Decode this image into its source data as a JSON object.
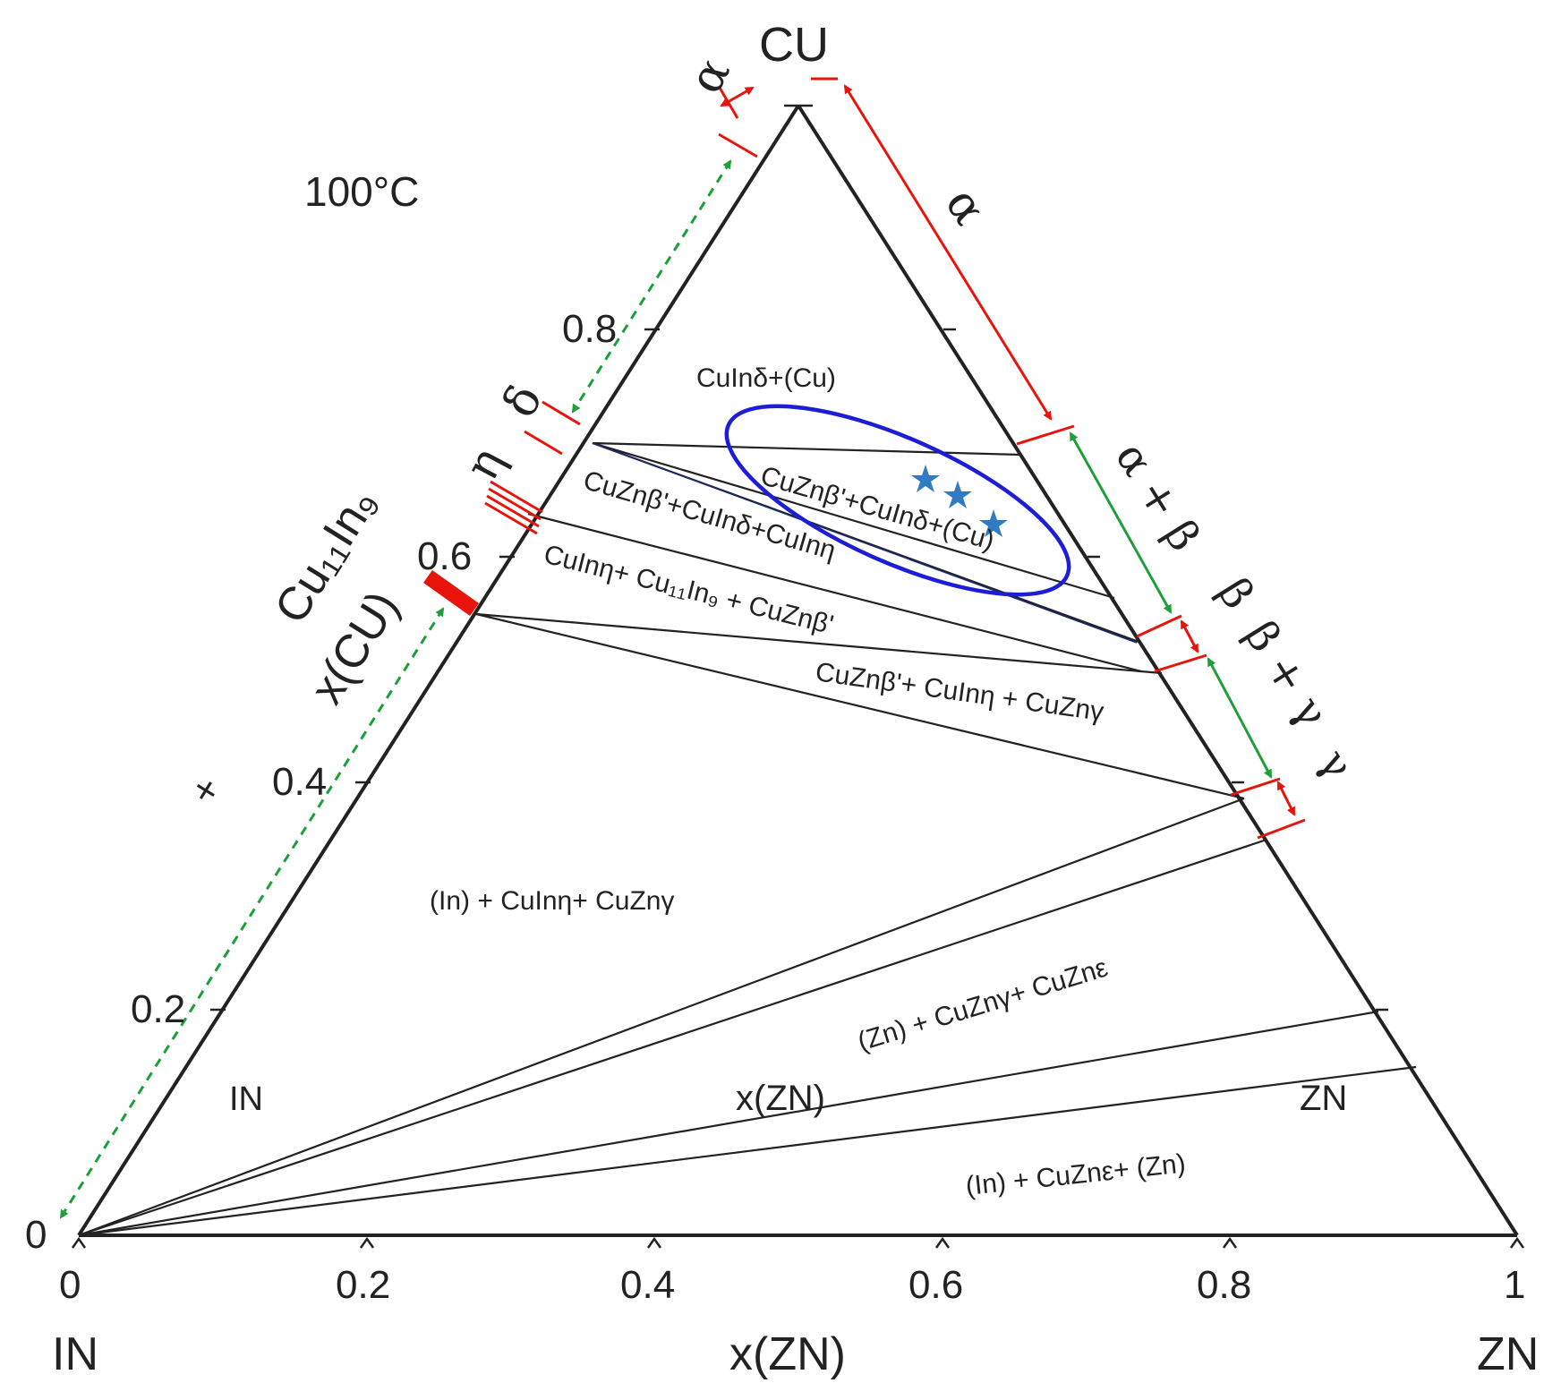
{
  "title": {
    "temperature": "100°C",
    "vertex_top": "CU",
    "vertex_left": "IN",
    "vertex_right": "ZN",
    "bottom_axis_title": "x(ZN)",
    "left_axis_title": "x(CU)",
    "left_compound": "Cu₁₁In₉",
    "plus_sign": "+"
  },
  "axes": {
    "bottom_ticks": [
      "0",
      "0.2",
      "0.4",
      "0.6",
      "0.8",
      "1"
    ],
    "left_ticks": [
      "0",
      "0.2",
      "0.4",
      "0.6",
      "0.8"
    ],
    "interior_labels": {
      "in": "IN",
      "xzn": "x(ZN)",
      "zn": "ZN"
    }
  },
  "phase_regions": [
    "CuInδ+(Cu)",
    "CuZnβ'+CuInδ+(Cu)",
    "CuZnβ'+CuInδ+CuInη",
    "CuInη+ Cu₁₁In₉ + CuZnβ'",
    "CuZnβ'+ CuInη + CuZnγ",
    "(In) + CuInη+ CuZnγ",
    "(Zn) + CuZnγ+ CuZnε",
    "(In) + CuZnε+ (Zn)"
  ],
  "solubility_labels": {
    "left": [
      "α",
      "δ",
      "η"
    ],
    "right": [
      "α",
      "α + β",
      "β",
      "β + γ",
      "γ"
    ]
  },
  "experimental_points": {
    "marker": "star",
    "count": 3,
    "points": [
      {
        "x_zn": 0.59,
        "x_cu": 0.66
      },
      {
        "x_zn": 0.61,
        "x_cu": 0.64
      },
      {
        "x_zn": 0.64,
        "x_cu": 0.62
      }
    ]
  },
  "colors": {
    "axis": "#222222",
    "red_marker": "#e8140c",
    "green_arrow": "#1f9e3a",
    "green_dashed": "#1aa038",
    "ellipse": "#1d1dd6",
    "star": "#2f7bc4"
  }
}
